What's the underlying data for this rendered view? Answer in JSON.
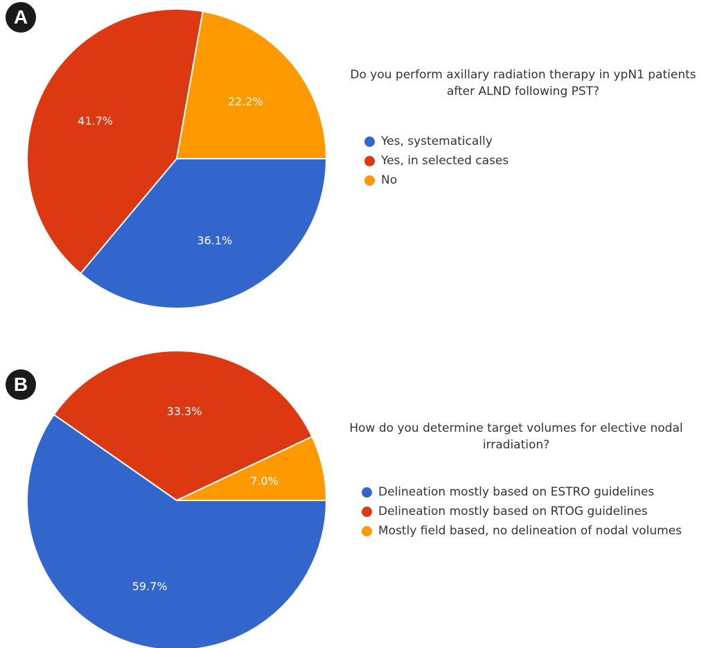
{
  "chart_data": [
    {
      "type": "pie",
      "panel_label": "A",
      "title": "Do you perform axillary radiation therapy in ypN1 patients after ALND following PST?",
      "categories": [
        "Yes, systematically",
        "Yes, in selected cases",
        "No"
      ],
      "values": [
        36.1,
        41.7,
        22.2
      ],
      "value_labels": [
        "36.1%",
        "41.7%",
        "22.2%"
      ],
      "colors": [
        "#3366cc",
        "#dc3912",
        "#ff9900"
      ],
      "legend_position": "right"
    },
    {
      "type": "pie",
      "panel_label": "B",
      "title": "How do you determine target volumes for elective nodal irradiation?",
      "categories": [
        "Delineation mostly based on ESTRO guidelines",
        "Delineation mostly based on RTOG guidelines",
        "Mostly field based, no delineation of nodal volumes"
      ],
      "values": [
        59.7,
        33.3,
        7.0
      ],
      "value_labels": [
        "59.7%",
        "33.3%",
        "7.0%"
      ],
      "colors": [
        "#3366cc",
        "#dc3912",
        "#ff9900"
      ],
      "legend_position": "right"
    }
  ]
}
